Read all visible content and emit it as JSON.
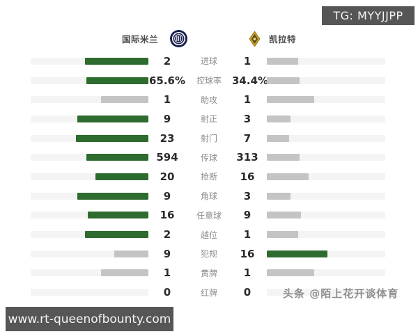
{
  "watermarks": {
    "telegram": "TG: MYYJJPP",
    "site": "www.rt-queenofbounty.com",
    "toutiao": "头条 @陌上花开谈体育"
  },
  "header": {
    "home": {
      "name": "国际米兰",
      "logo": "inter-milan-crest"
    },
    "away": {
      "name": "凯拉特",
      "logo": "kairat-crest"
    }
  },
  "chart_data": {
    "type": "bar",
    "subtype": "head-to-head-match-stats",
    "title": "国际米兰 vs 凯拉特",
    "legend_position": "top",
    "categories": [
      "进球",
      "控球率",
      "助攻",
      "射正",
      "射门",
      "传球",
      "抢断",
      "角球",
      "任意球",
      "越位",
      "犯规",
      "黄牌",
      "红牌"
    ],
    "series": [
      {
        "name": "国际米兰",
        "values": [
          2,
          65.6,
          1,
          9,
          23,
          594,
          20,
          9,
          16,
          2,
          9,
          1,
          0
        ],
        "display": [
          "2",
          "65.6%",
          "1",
          "9",
          "23",
          "594",
          "20",
          "9",
          "16",
          "2",
          "9",
          "1",
          "0"
        ]
      },
      {
        "name": "凯拉特",
        "values": [
          1,
          34.4,
          1,
          3,
          7,
          313,
          16,
          3,
          9,
          1,
          16,
          1,
          0
        ],
        "display": [
          "1",
          "34.4%",
          "1",
          "3",
          "7",
          "313",
          "16",
          "3",
          "9",
          "1",
          "16",
          "1",
          "0"
        ]
      }
    ],
    "colors": {
      "leader": "#2e6b2e",
      "trail": "#c4c4c4",
      "track": "#f4f4f4",
      "inter_navy": "#1a2050",
      "kairat_gold": "#c9a227"
    }
  }
}
